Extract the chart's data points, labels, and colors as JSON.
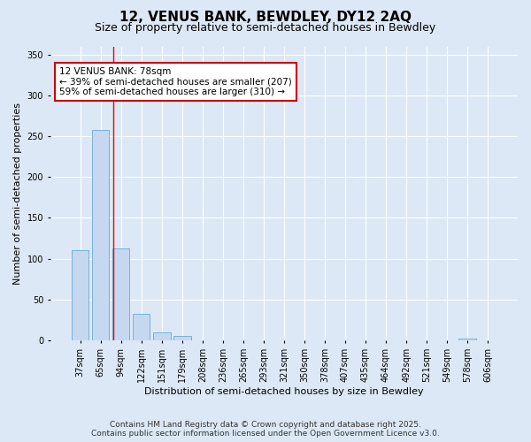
{
  "title": "12, VENUS BANK, BEWDLEY, DY12 2AQ",
  "subtitle": "Size of property relative to semi-detached houses in Bewdley",
  "xlabel": "Distribution of semi-detached houses by size in Bewdley",
  "ylabel": "Number of semi-detached properties",
  "bins": [
    "37sqm",
    "65sqm",
    "94sqm",
    "122sqm",
    "151sqm",
    "179sqm",
    "208sqm",
    "236sqm",
    "265sqm",
    "293sqm",
    "321sqm",
    "350sqm",
    "378sqm",
    "407sqm",
    "435sqm",
    "464sqm",
    "492sqm",
    "521sqm",
    "549sqm",
    "578sqm",
    "606sqm"
  ],
  "values": [
    110,
    258,
    113,
    32,
    10,
    5,
    0,
    0,
    0,
    0,
    0,
    0,
    0,
    0,
    0,
    0,
    0,
    0,
    0,
    2,
    0
  ],
  "bar_color": "#c5d8f0",
  "bar_edgecolor": "#6aaad4",
  "red_line_x": 1.62,
  "annotation_title": "12 VENUS BANK: 78sqm",
  "annotation_line1": "← 39% of semi-detached houses are smaller (207)",
  "annotation_line2": "59% of semi-detached houses are larger (310) →",
  "annotation_box_color": "#ffffff",
  "annotation_box_edgecolor": "#cc0000",
  "ylim": [
    0,
    360
  ],
  "yticks": [
    0,
    50,
    100,
    150,
    200,
    250,
    300,
    350
  ],
  "footer_line1": "Contains HM Land Registry data © Crown copyright and database right 2025.",
  "footer_line2": "Contains public sector information licensed under the Open Government Licence v3.0.",
  "bg_color": "#dce8f5",
  "plot_bg_color": "#dce8f5",
  "grid_color": "#ffffff",
  "title_fontsize": 11,
  "subtitle_fontsize": 9,
  "axis_label_fontsize": 8,
  "tick_fontsize": 7,
  "footer_fontsize": 6.5,
  "annotation_fontsize": 7.5
}
